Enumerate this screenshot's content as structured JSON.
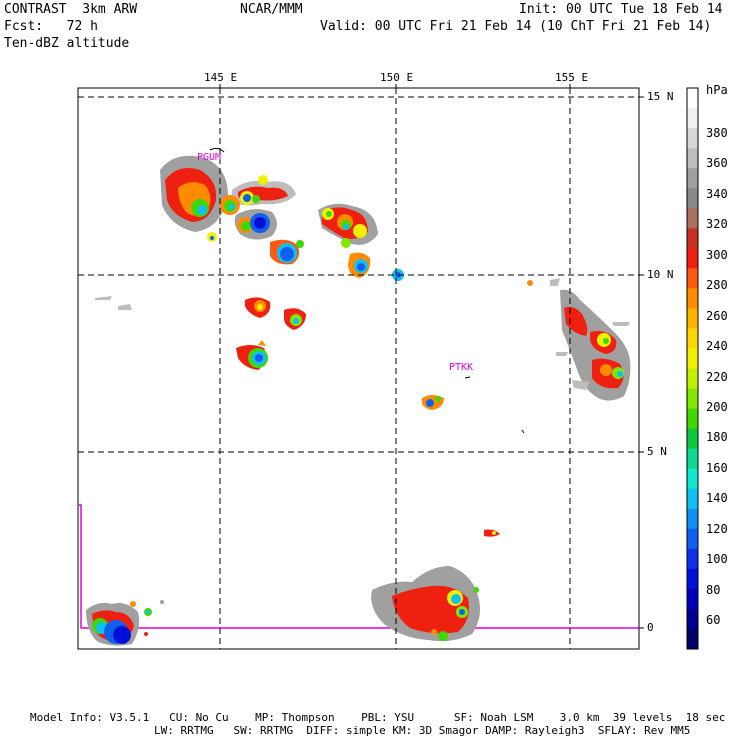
{
  "header": {
    "left_line1": "CONTRAST  3km ARW",
    "left_line2": "Fcst:   72 h",
    "left_line3": "Ten-dBZ altitude",
    "center": "NCAR/MMM",
    "right_line1": "Init: 00 UTC Tue 18 Feb 14",
    "right_line2": "Valid: 00 UTC Fri 21 Feb 14 (10 ChT Fri 21 Feb 14)"
  },
  "map": {
    "lon_labels": [
      "145 E",
      "150 E",
      "155 E"
    ],
    "lat_labels": [
      "15 N",
      "10 N",
      "5 N",
      "0"
    ],
    "stations": [
      "PGUM",
      "PTKK"
    ]
  },
  "colorbar": {
    "unit": "hPa",
    "labels": [
      "380",
      "360",
      "340",
      "320",
      "300",
      "280",
      "260",
      "240",
      "220",
      "200",
      "180",
      "160",
      "140",
      "120",
      "100",
      "80",
      "60"
    ],
    "colors": [
      "#ffffff",
      "#f0f0f0",
      "#d8d8d8",
      "#bdbdbd",
      "#a0a0a0",
      "#888888",
      "#a87060",
      "#c83020",
      "#ee2010",
      "#ff5a10",
      "#ff8c00",
      "#ffb400",
      "#ffd800",
      "#f0f000",
      "#c0f000",
      "#80e800",
      "#40d800",
      "#10c840",
      "#10d890",
      "#10e8d0",
      "#10c0f0",
      "#1090f0",
      "#1060f0",
      "#1030e8",
      "#0010d8",
      "#0000b8",
      "#000090",
      "#000068"
    ]
  },
  "footer": {
    "line1": "Model Info: V3.5.1   CU: No Cu    MP: Thompson    PBL: YSU      SF: Noah LSM    3.0 km  39 levels  18 sec",
    "line2": "LW: RRTMG   SW: RRTMG  DIFF: simple KM: 3D Smagor DAMP: Rayleigh3  SFLAY: Rev MM5"
  }
}
